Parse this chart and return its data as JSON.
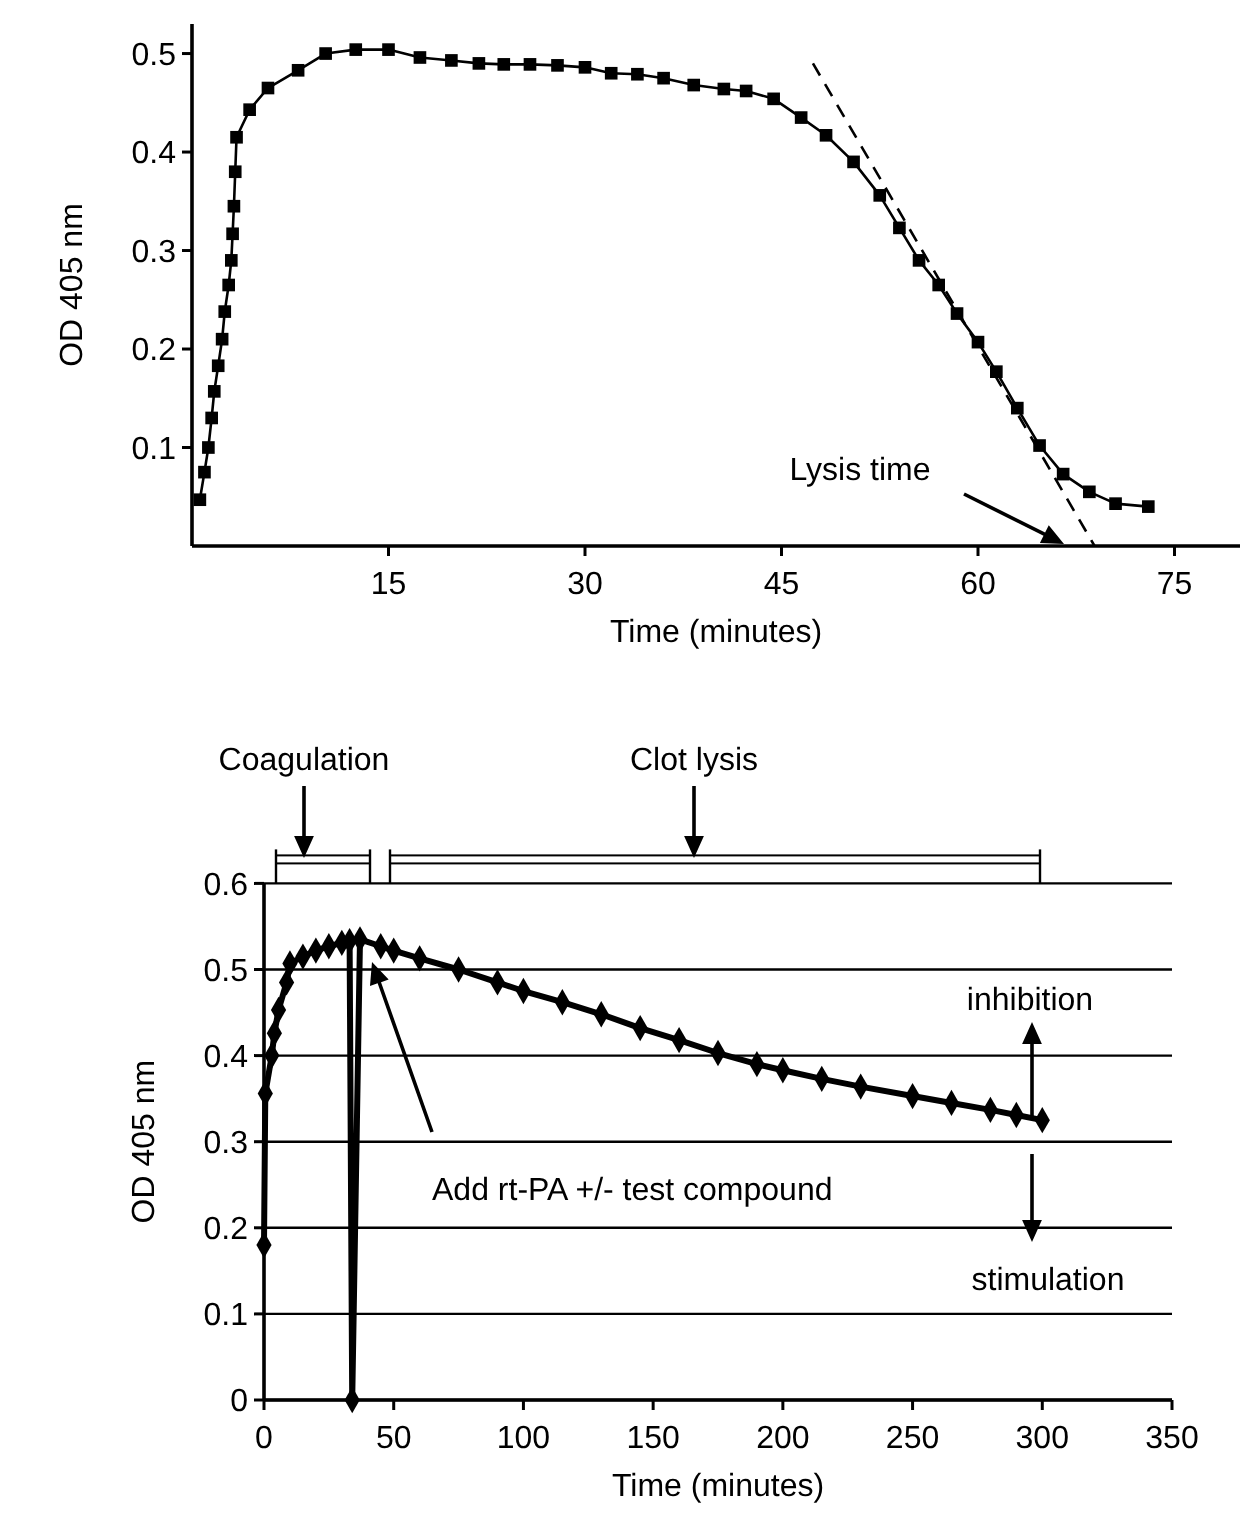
{
  "chart_data": [
    {
      "type": "line",
      "xlabel": "Time (minutes)",
      "ylabel": "OD 405 nm",
      "xlim": [
        0,
        80
      ],
      "ylim": [
        0,
        0.53
      ],
      "xticks": [
        15,
        30,
        45,
        60,
        75
      ],
      "yticks": [
        0.1,
        0.2,
        0.3,
        0.4,
        0.5
      ],
      "series": [
        {
          "marker": "square",
          "line_style": "solid",
          "color": "#000000",
          "x": [
            0.6,
            0.95,
            1.25,
            1.5,
            1.7,
            2.0,
            2.3,
            2.5,
            2.8,
            3.0,
            3.1,
            3.2,
            3.3,
            3.4,
            4.4,
            5.8,
            8.1,
            10.2,
            12.5,
            15,
            17.4,
            19.8,
            21.9,
            23.8,
            25.8,
            27.9,
            30,
            32,
            34,
            36,
            38.3,
            40.6,
            42.3,
            44.4,
            46.5,
            48.4,
            50.5,
            52.5,
            54,
            55.5,
            57,
            58.4,
            60,
            61.4,
            63,
            64.7,
            66.5,
            68.5,
            70.5,
            73
          ],
          "values": [
            0.047,
            0.075,
            0.1,
            0.13,
            0.157,
            0.183,
            0.21,
            0.238,
            0.265,
            0.29,
            0.317,
            0.345,
            0.38,
            0.415,
            0.443,
            0.465,
            0.483,
            0.5,
            0.504,
            0.504,
            0.496,
            0.493,
            0.49,
            0.489,
            0.489,
            0.488,
            0.486,
            0.48,
            0.479,
            0.475,
            0.468,
            0.464,
            0.462,
            0.454,
            0.435,
            0.417,
            0.39,
            0.356,
            0.323,
            0.29,
            0.265,
            0.236,
            0.207,
            0.177,
            0.14,
            0.102,
            0.073,
            0.055,
            0.043,
            0.04
          ]
        },
        {
          "marker": "none",
          "line_style": "dashed",
          "color": "#000000",
          "x": [
            47.4,
            68.9
          ],
          "values": [
            0.49,
            0
          ]
        }
      ],
      "annotations": [
        "Lysis time"
      ]
    },
    {
      "type": "line",
      "xlabel": "Time (minutes)",
      "ylabel": "OD 405 nm",
      "xlim": [
        0,
        350
      ],
      "ylim": [
        0,
        0.6
      ],
      "xticks": [
        0,
        50,
        100,
        150,
        200,
        250,
        300,
        350
      ],
      "yticks": [
        0,
        0.1,
        0.2,
        0.3,
        0.4,
        0.5,
        0.6
      ],
      "grid": "y",
      "series": [
        {
          "marker": "diamond",
          "line_style": "solid",
          "color": "#000000",
          "x": [
            0,
            0.5,
            3,
            4,
            5.6,
            8.7,
            10,
            15,
            20,
            25,
            30,
            33,
            34,
            37,
            45,
            50,
            60,
            75,
            90,
            100,
            115,
            130,
            145,
            160,
            175,
            190,
            200,
            215,
            230,
            250,
            265,
            280,
            290,
            300
          ],
          "values": [
            0.18,
            0.356,
            0.4,
            0.426,
            0.453,
            0.485,
            0.507,
            0.515,
            0.522,
            0.527,
            0.531,
            0.533,
            0,
            0.535,
            0.527,
            0.522,
            0.513,
            0.5,
            0.485,
            0.475,
            0.462,
            0.448,
            0.432,
            0.418,
            0.403,
            0.39,
            0.383,
            0.373,
            0.364,
            0.353,
            0.345,
            0.337,
            0.331,
            0.325
          ]
        }
      ],
      "annotations": [
        "Coagulation",
        "Clot lysis",
        "Add rt-PA +/- test compound",
        "inhibition",
        "stimulation"
      ]
    }
  ]
}
